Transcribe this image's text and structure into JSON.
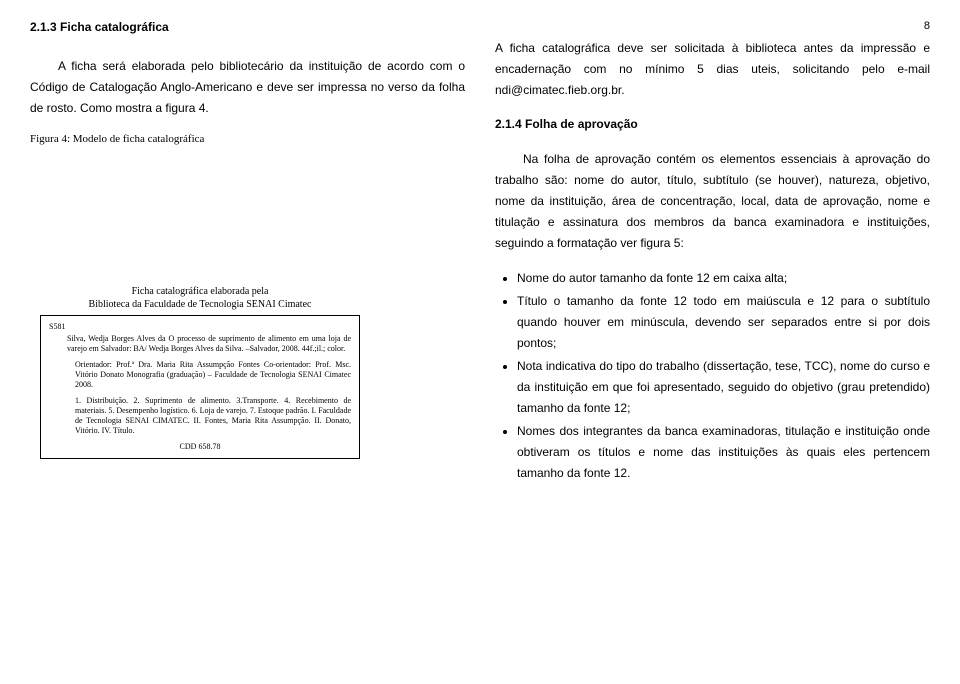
{
  "pageNumber": "8",
  "left": {
    "heading": "2.1.3 Ficha catalográfica",
    "para1": "A ficha será elaborada pelo bibliotecário da instituição de acordo com o Código de Catalogação Anglo-Americano e deve ser impressa no verso da folha de rosto. Como mostra a figura 4.",
    "figCaption": "Figura 4: Modelo de ficha catalográfica",
    "fichaHeader1": "Ficha catalográfica elaborada pela",
    "fichaHeader2": "Biblioteca da Faculdade de Tecnologia SENAI Cimatec",
    "fichaCode": "S581",
    "fichaBlock1": "Silva, Wedja Borges Alves da\n      O processo de suprimento de alimento em uma loja de varejo em Salvador: BA/ Wedja Borges Alves da Silva. –Salvador, 2008.\n      44f.;il.; color.",
    "fichaBlock2": "Orientador: Prof.ª Dra. Maria Rita Assumpção Fontes\n      Co-orientador: Prof. Msc. Vitório Donato\n      Monografia (graduação) – Faculdade de Tecnologia SENAI Cimatec 2008.",
    "fichaBlock3": "1. Distribuição. 2. Suprimento de alimento. 3.Transporte. 4. Recebimento de materiais. 5. Desempenho logístico. 6. Loja de varejo. 7. Estoque padrão. I. Faculdade de Tecnologia SENAI CIMATEC. II. Fontes, Maria Rita Assumpção. II. Donato, Vitório. IV. Título.",
    "fichaCDD": "CDD 658.78"
  },
  "right": {
    "para1": "A ficha catalográfica deve ser solicitada à biblioteca antes da impressão e encadernação com no mínimo 5 dias uteis, solicitando pelo e-mail ndi@cimatec.fieb.org.br.",
    "heading": "2.1.4 Folha de aprovação",
    "para2": "Na folha de aprovação contém os elementos essenciais à aprovação do trabalho são: nome do autor, título, subtítulo (se houver), natureza, objetivo, nome da instituição, área de concentração, local, data de aprovação, nome e titulação e assinatura dos membros da banca examinadora e instituições, seguindo a formatação ver figura 5:",
    "bullets": [
      "Nome do autor tamanho da fonte 12 em caixa alta;",
      "Título o tamanho da fonte 12 todo em maiúscula e 12 para o subtítulo quando houver em minúscula, devendo ser separados entre si por dois pontos;",
      "Nota indicativa do tipo do trabalho (dissertação, tese, TCC), nome do curso e da instituição em que foi apresentado, seguido do objetivo (grau pretendido) tamanho da fonte 12;",
      "Nomes dos integrantes da banca examinadoras, titulação e instituição onde obtiveram os títulos e nome das instituições às quais eles pertencem tamanho da fonte 12."
    ]
  }
}
